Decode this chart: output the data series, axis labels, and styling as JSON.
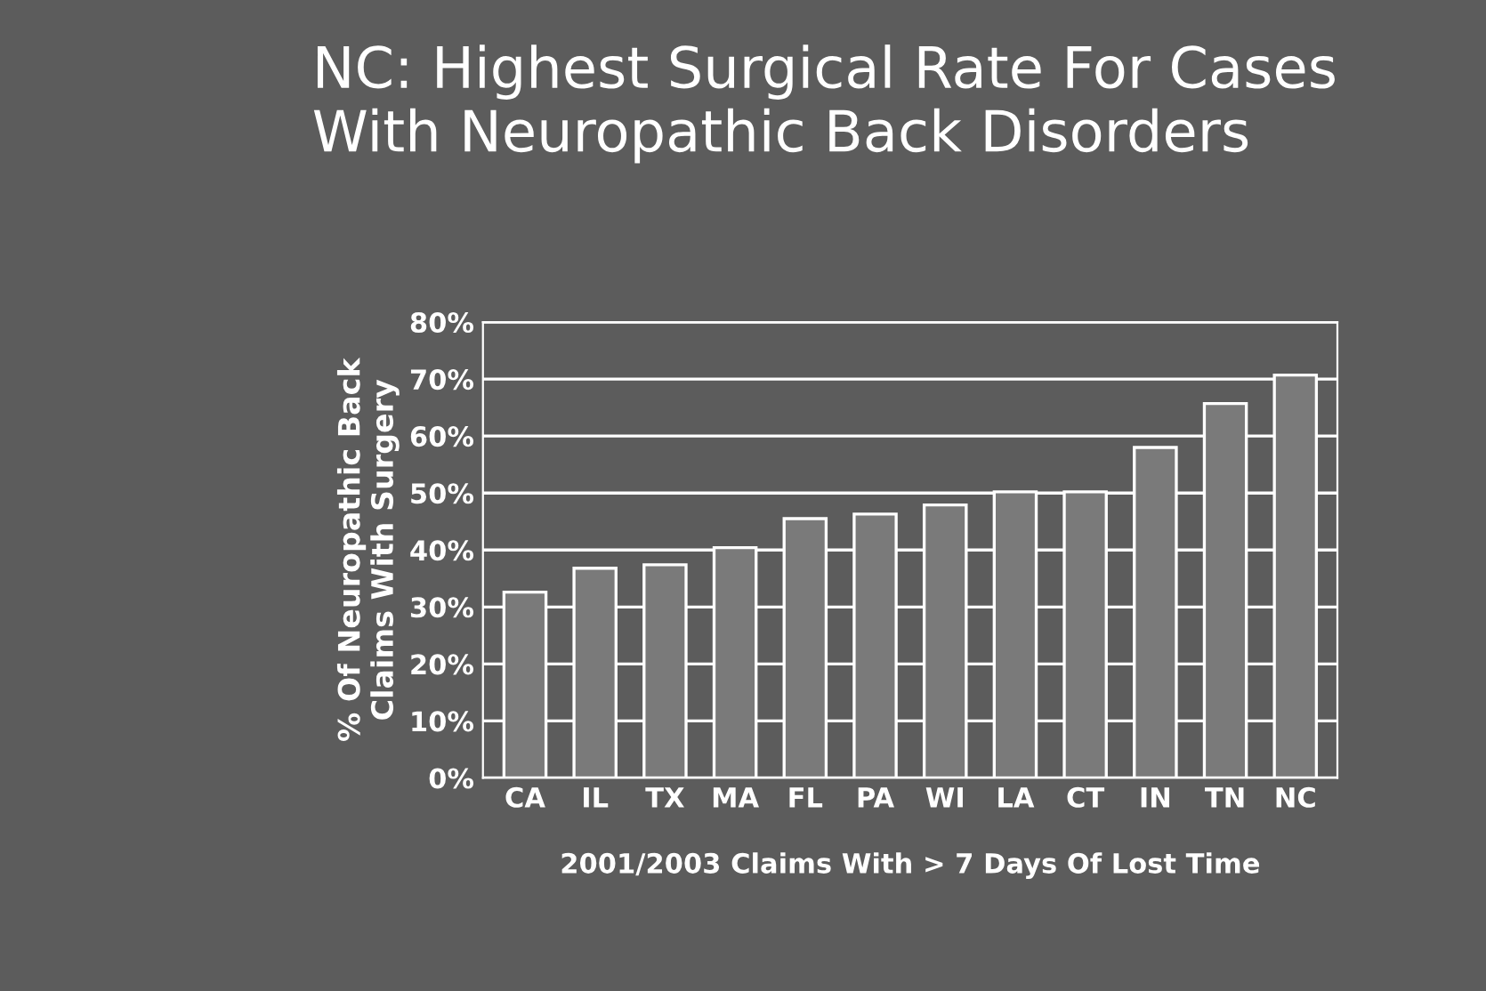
{
  "chart_data": {
    "type": "bar",
    "title": "NC: Highest Surgical Rate For Cases\nWith Neuropathic Back Disorders",
    "xlabel": "2001/2003 Claims With > 7 Days Of Lost Time",
    "ylabel": "% Of Neuropathic Back\nClaims With Surgery",
    "categories": [
      "CA",
      "IL",
      "TX",
      "MA",
      "FL",
      "PA",
      "WI",
      "LA",
      "CT",
      "IN",
      "TN",
      "NC"
    ],
    "values": [
      32.6,
      36.8,
      37.4,
      40.4,
      45.5,
      46.3,
      47.9,
      50.2,
      50.2,
      58,
      65.7,
      70.7
    ],
    "color": "#7a7a7a",
    "ylim": [
      0,
      80
    ],
    "yticks": [
      {
        "value": 0,
        "label": "0%"
      },
      {
        "value": 10,
        "label": "10%"
      },
      {
        "value": 20,
        "label": "20%"
      },
      {
        "value": 30,
        "label": "30%"
      },
      {
        "value": 40,
        "label": "40%"
      },
      {
        "value": 50,
        "label": "50%"
      },
      {
        "value": 60,
        "label": "60%"
      },
      {
        "value": 70,
        "label": "70%"
      },
      {
        "value": 80,
        "label": "80%"
      }
    ],
    "grid": "y"
  }
}
